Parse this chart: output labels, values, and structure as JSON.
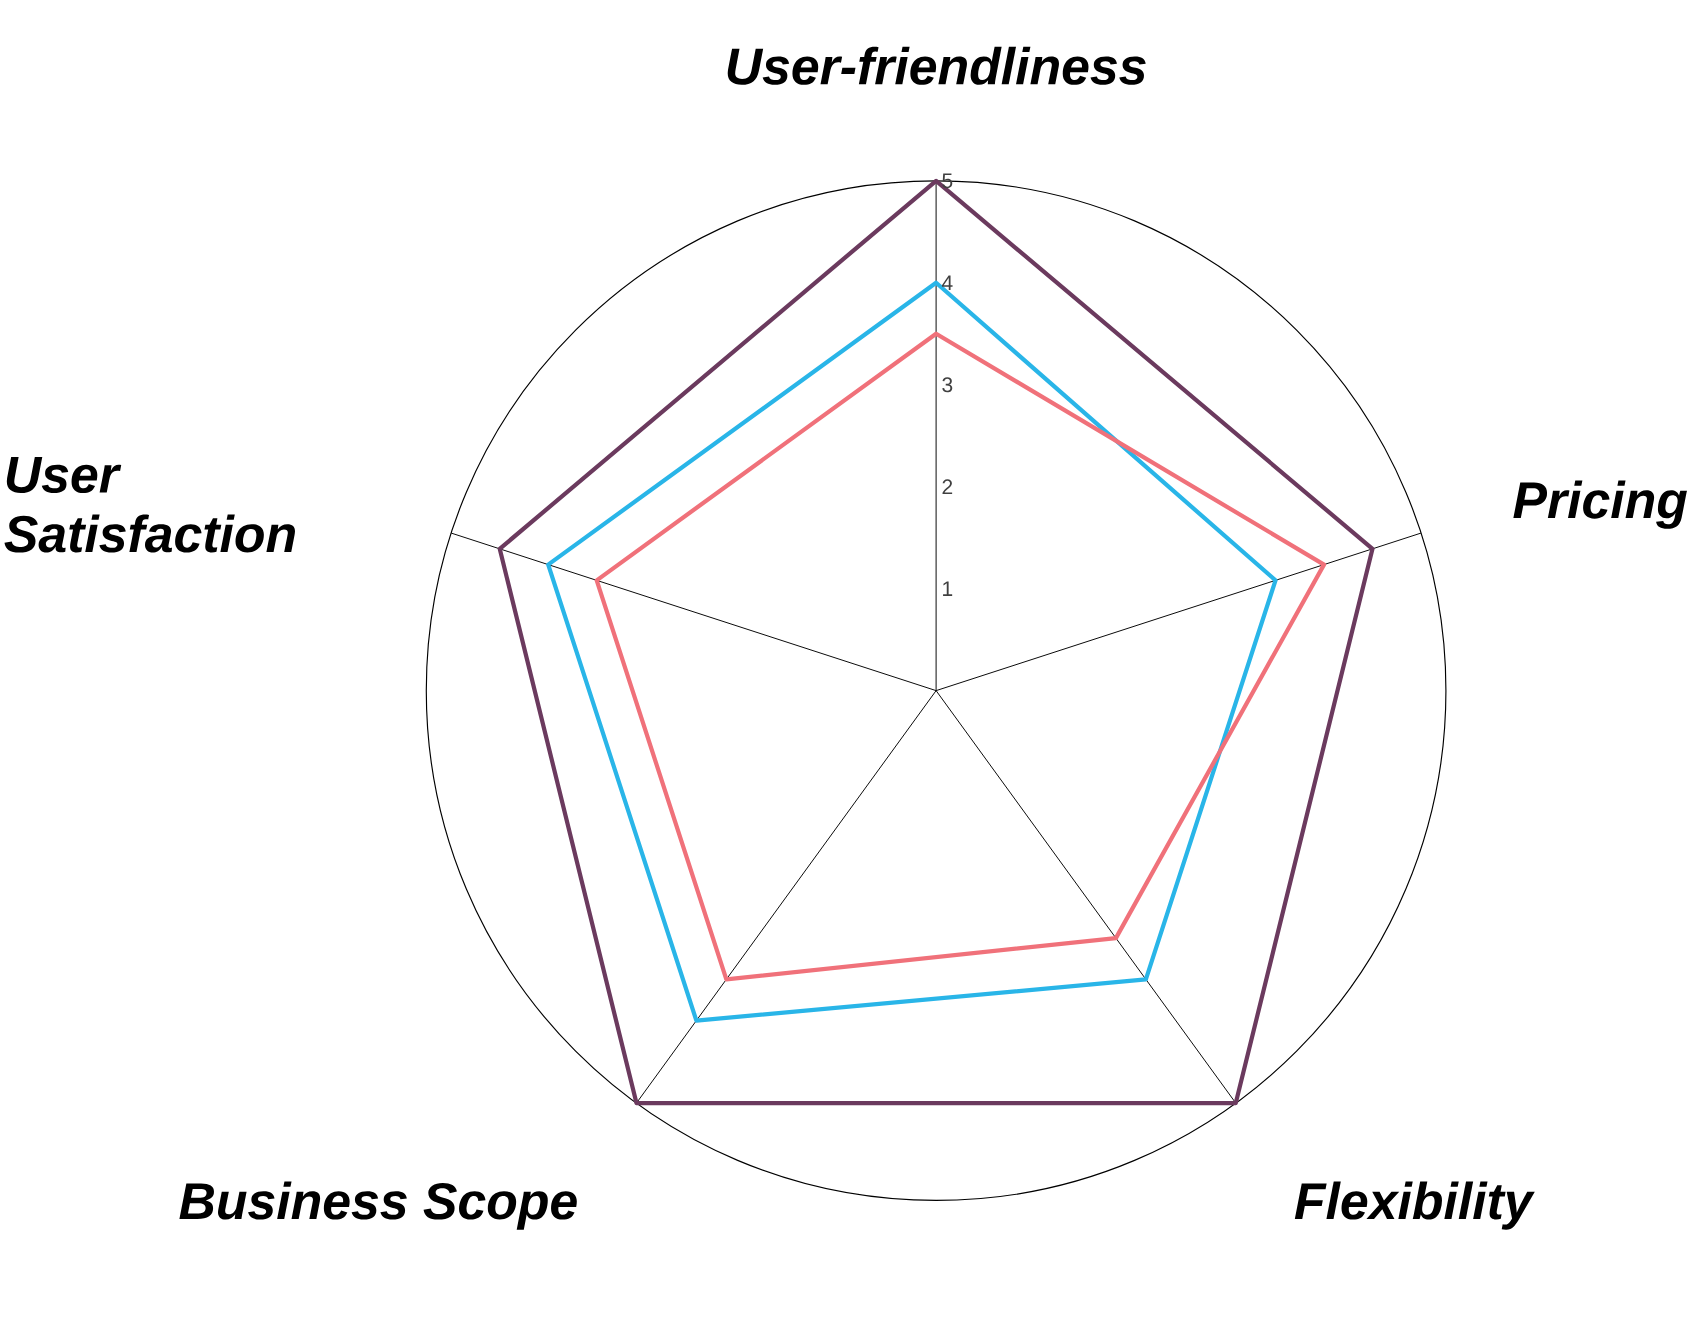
{
  "chart_data": {
    "type": "radar",
    "categories": [
      "User-friendliness",
      "Pricing",
      "Flexibility",
      "Business Scope",
      "User Satisfaction"
    ],
    "series": [
      {
        "color": "#6b3a5e",
        "values": [
          5,
          4.5,
          5,
          5,
          4.5
        ]
      },
      {
        "color": "#29b5e8",
        "values": [
          4,
          3.5,
          3.5,
          4,
          4
        ]
      },
      {
        "color": "#f0717a",
        "values": [
          3.5,
          4,
          3,
          3.5,
          3.5
        ]
      }
    ],
    "ylim": [
      0,
      5
    ],
    "yticks": [
      1,
      2,
      3,
      4,
      5
    ],
    "grid": true
  }
}
